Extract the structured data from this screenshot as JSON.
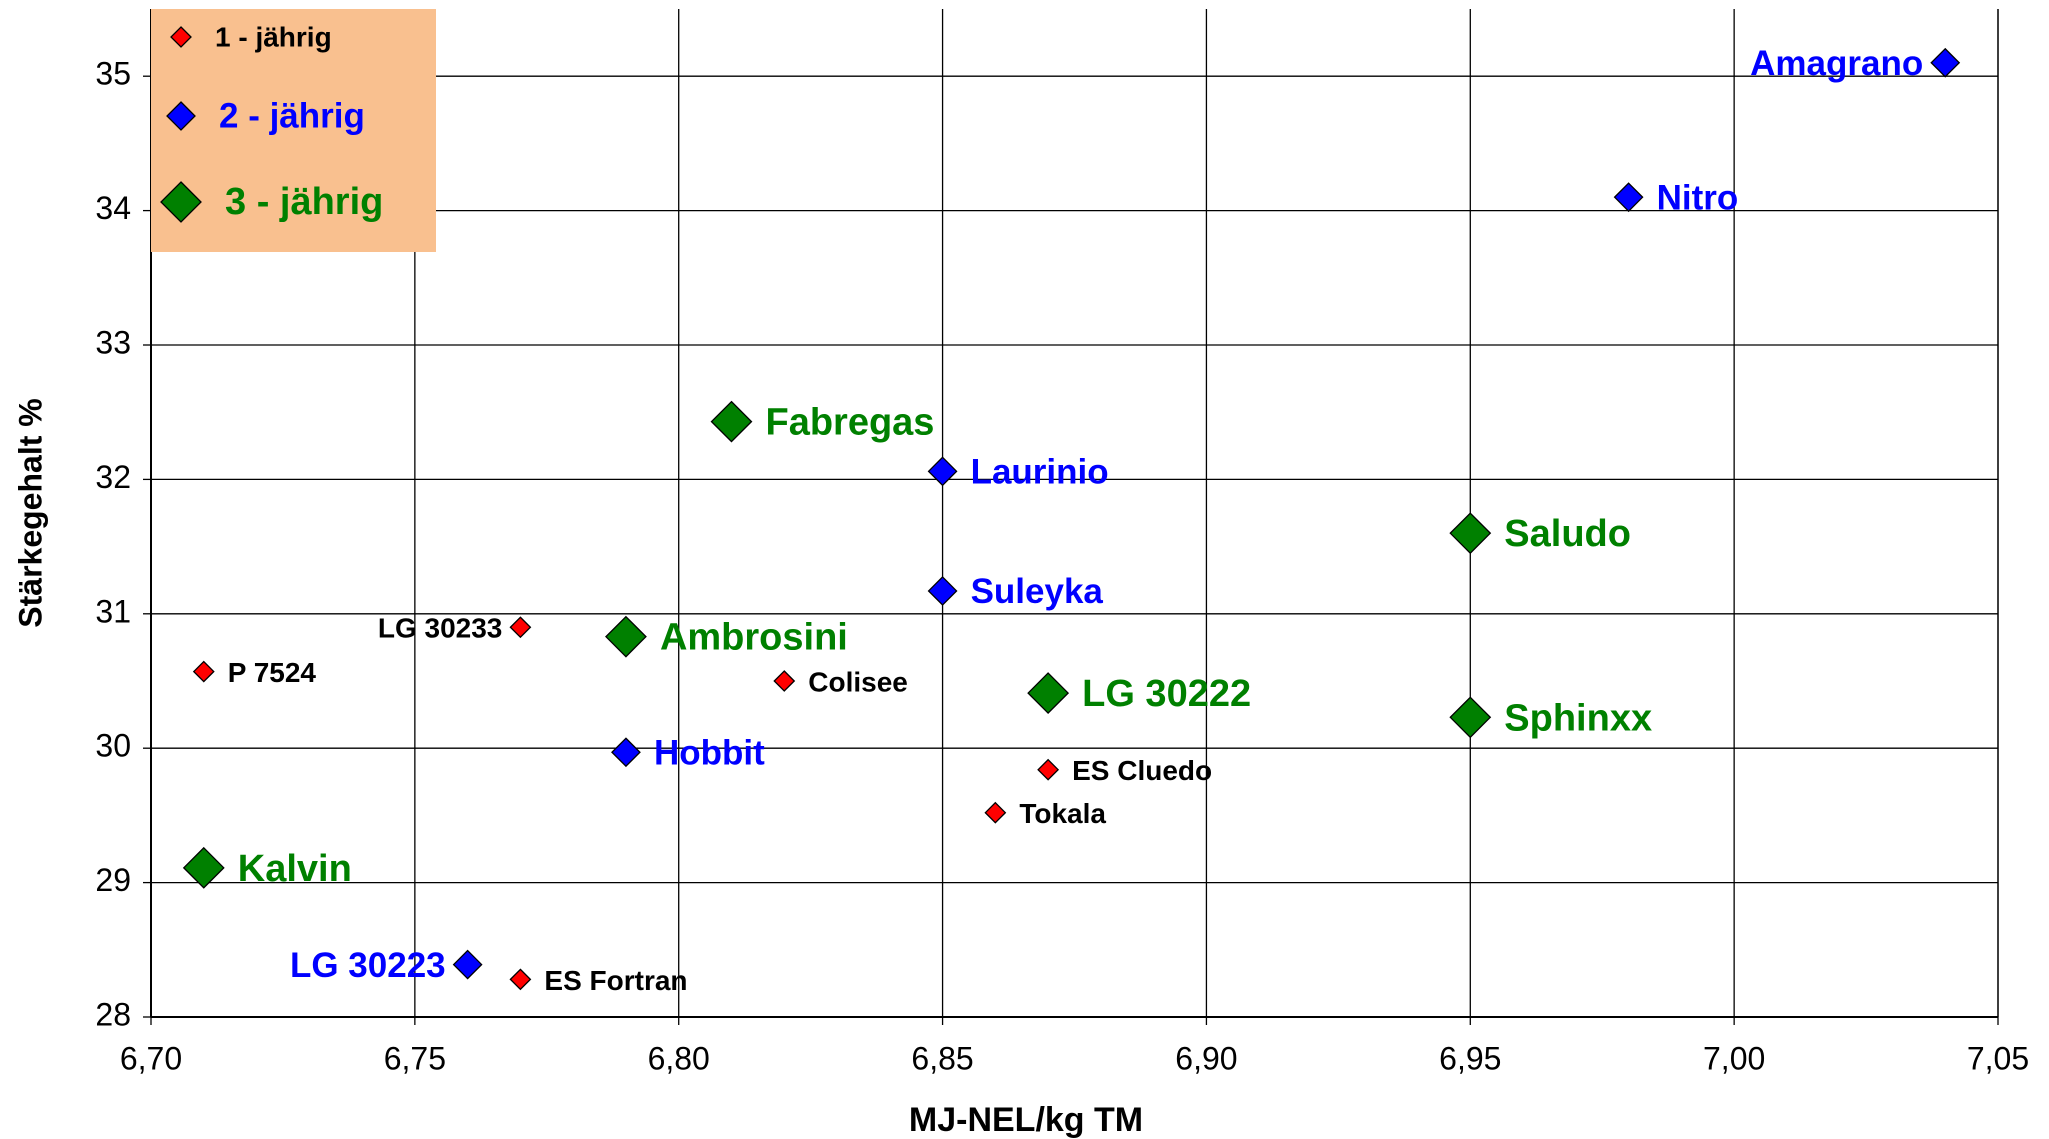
{
  "chart_data": {
    "type": "scatter",
    "xlabel": "MJ-NEL/kg TM",
    "ylabel": "Stärkegehalt %",
    "xlim": [
      6.7,
      7.05
    ],
    "ylim": [
      28,
      35.5
    ],
    "xticks": [
      {
        "value": 6.7,
        "label": "6,70"
      },
      {
        "value": 6.75,
        "label": "6,75"
      },
      {
        "value": 6.8,
        "label": "6,80"
      },
      {
        "value": 6.85,
        "label": "6,85"
      },
      {
        "value": 6.9,
        "label": "6,90"
      },
      {
        "value": 6.95,
        "label": "6,95"
      },
      {
        "value": 7.0,
        "label": "7,00"
      },
      {
        "value": 7.05,
        "label": "7,05"
      }
    ],
    "yticks": [
      28,
      29,
      30,
      31,
      32,
      33,
      34,
      35
    ],
    "grid": true,
    "legend": "upper left",
    "series": [
      {
        "name": "1 - jährig",
        "color": "#ff0000",
        "label_color": "#000000",
        "labels": [
          "LG 30233",
          "P 7524",
          "Colisee",
          "ES Cluedo",
          "Tokala",
          "ES Fortran"
        ],
        "x": [
          6.77,
          6.71,
          6.82,
          6.87,
          6.86,
          6.77
        ],
        "values": [
          30.9,
          30.57,
          30.5,
          29.84,
          29.52,
          28.28
        ]
      },
      {
        "name": "2 - jährig",
        "color": "#0000ff",
        "label_color": "#0000ff",
        "labels": [
          "Amagrano",
          "Nitro",
          "Laurinio",
          "Suleyka",
          "Hobbit",
          "LG 30223"
        ],
        "x": [
          7.04,
          6.98,
          6.85,
          6.85,
          6.79,
          6.76
        ],
        "values": [
          35.1,
          34.1,
          32.06,
          31.17,
          29.97,
          28.39
        ]
      },
      {
        "name": "3 - jährig",
        "color": "#008000",
        "label_color": "#008000",
        "labels": [
          "Fabregas",
          "Saludo",
          "Ambrosini",
          "LG 30222",
          "Sphinxx",
          "Kalvin"
        ],
        "x": [
          6.81,
          6.95,
          6.79,
          6.87,
          6.95,
          6.71
        ],
        "values": [
          32.43,
          31.6,
          30.83,
          30.41,
          30.23,
          29.11
        ]
      }
    ]
  }
}
